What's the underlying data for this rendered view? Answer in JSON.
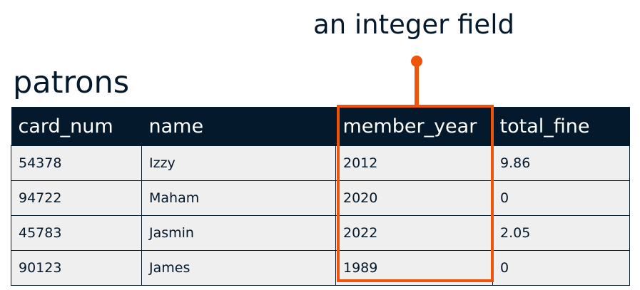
{
  "annotation": {
    "text": "an integer field",
    "color": "#f0540a"
  },
  "table": {
    "title": "patrons",
    "header_color": "#05192d",
    "columns": [
      "card_num",
      "name",
      "member_year",
      "total_fine"
    ],
    "highlighted_column": "member_year",
    "rows": [
      [
        "54378",
        "Izzy",
        "2012",
        "9.86"
      ],
      [
        "94722",
        "Maham",
        "2020",
        "0"
      ],
      [
        "45783",
        "Jasmin",
        "2022",
        "2.05"
      ],
      [
        "90123",
        "James",
        "1989",
        "0"
      ]
    ]
  }
}
